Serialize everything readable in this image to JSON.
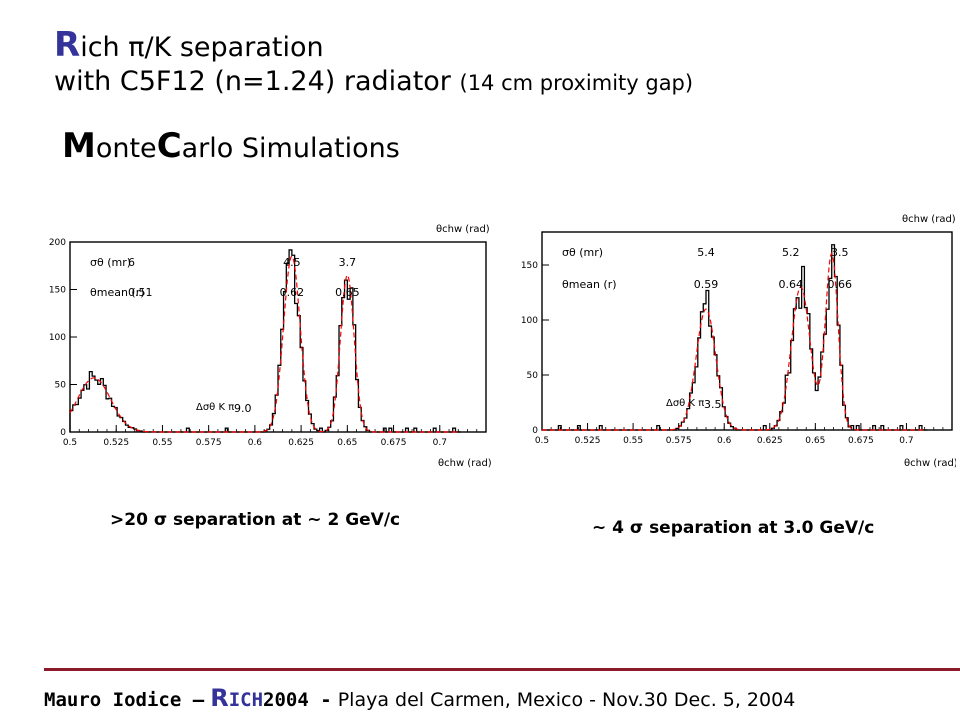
{
  "title": {
    "line1_initial": "R",
    "line1_rest": "ich π/K separation",
    "line2_main": "with C5F12 (n=1.24) radiator",
    "line2_sub": "(14 cm proximity gap)"
  },
  "subtitle": {
    "initial1": "M",
    "rest1": "onte",
    "initial2": "C",
    "rest2": "arlo Simulations"
  },
  "footer": {
    "author": "Mauro Iodice –",
    "rich_initial": "R",
    "rich_rest": "ICH",
    "year": "2004 -",
    "place": "Playa del Carmen, Mexico - Nov.30 Dec. 5, 2004"
  },
  "chart_data": [
    {
      "type": "histogram",
      "caption": ">20 σ separation at ~ 2 GeV/c",
      "xlabel": "θchw (rad)",
      "top_axis_label": "θchw (rad)",
      "xlim": [
        0.5,
        0.725
      ],
      "ylim": [
        0,
        200
      ],
      "x_ticks": [
        "0.5",
        "0.525",
        "0.55",
        "0.575",
        "0.6",
        "0.625",
        "0.65",
        "0.675",
        "0.7"
      ],
      "y_ticks": [
        "0",
        "50",
        "100",
        "150",
        "200"
      ],
      "legend_sigma": "σθ (mr)",
      "legend_mean": "θmean (r)",
      "legend_sigma_value": "6",
      "legend_mean_value": "0.51",
      "delta_label": "Δσθ K π",
      "delta_value": "9.0",
      "peaks": [
        {
          "sigma": "4.5",
          "mean": "0.62",
          "mean_x": 0.62,
          "height": 185,
          "width": 0.0045
        },
        {
          "sigma": "3.7",
          "mean": "0.65",
          "mean_x": 0.65,
          "height": 165,
          "width": 0.0037
        }
      ],
      "background_bump": {
        "mean_x": 0.513,
        "height": 57,
        "width": 0.009
      },
      "series": [
        {
          "name": "histogram",
          "color": "#000000"
        },
        {
          "name": "fit",
          "color": "#ff0000"
        }
      ]
    },
    {
      "type": "histogram",
      "caption": "~ 4 σ separation at 3.0 GeV/c",
      "xlabel": "θchw (rad)",
      "top_axis_label": "θchw (rad)",
      "xlim": [
        0.5,
        0.725
      ],
      "ylim": [
        0,
        180
      ],
      "x_ticks": [
        "0.5",
        "0.525",
        "0.55",
        "0.575",
        "0.6",
        "0.625",
        "0.65",
        "0.675",
        "0.7"
      ],
      "y_ticks": [
        "0",
        "50",
        "100",
        "150"
      ],
      "legend_sigma": "σθ (mr)",
      "legend_mean": "θmean (r)",
      "delta_label": "Δσθ K π",
      "delta_value": "3.5",
      "peaks": [
        {
          "sigma": "5.4",
          "mean": "0.59",
          "mean_x": 0.59,
          "height": 110,
          "width": 0.0054
        },
        {
          "sigma": "5.2",
          "mean": "0.64",
          "mean_x": 0.642,
          "height": 130,
          "width": 0.0052
        },
        {
          "sigma": "3.5",
          "mean": "0.66",
          "mean_x": 0.659,
          "height": 160,
          "width": 0.0035
        }
      ],
      "series": [
        {
          "name": "histogram",
          "color": "#000000"
        },
        {
          "name": "fit",
          "color": "#ff0000"
        }
      ]
    }
  ]
}
